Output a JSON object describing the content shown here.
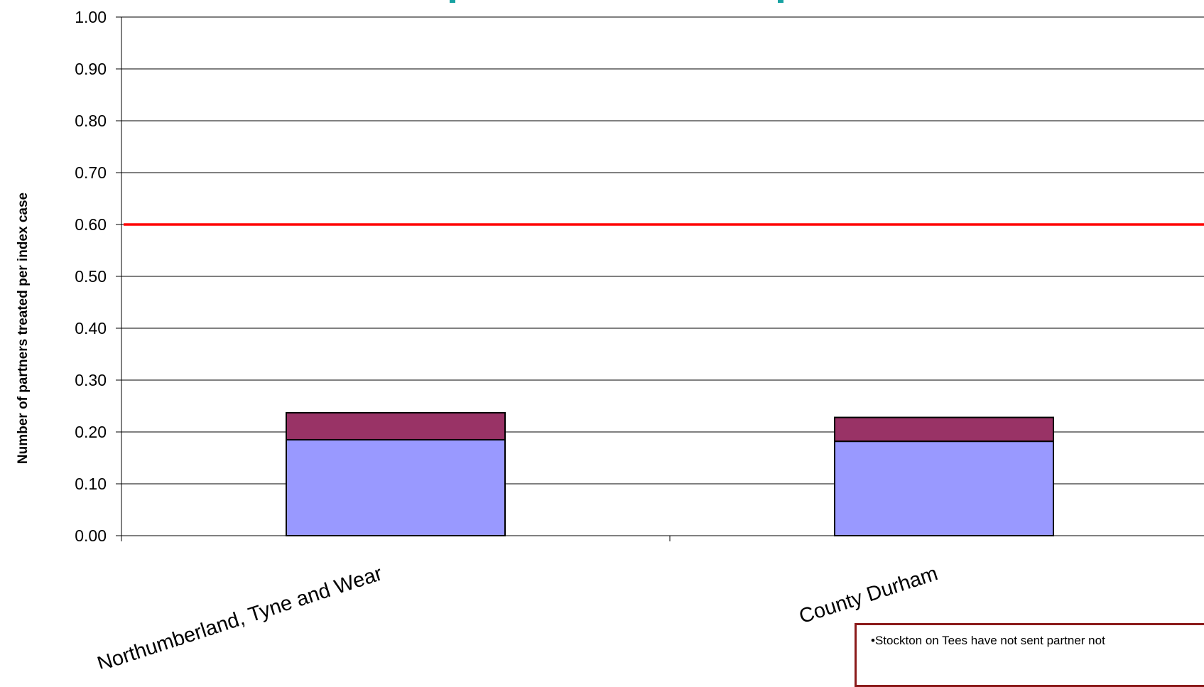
{
  "chart_data": {
    "type": "bar",
    "stacked": true,
    "ylabel": "Number of partners treated per index case",
    "ylim": [
      0,
      1.0
    ],
    "yticks": [
      "0.00",
      "0.10",
      "0.20",
      "0.30",
      "0.40",
      "0.50",
      "0.60",
      "0.70",
      "0.80",
      "0.90",
      "1.00"
    ],
    "grid": true,
    "categories": [
      "Northumberland, Tyne and Wear",
      "County Durham"
    ],
    "series": [
      {
        "values": [
          0.185,
          0.182
        ],
        "color": "#9999ff"
      },
      {
        "values": [
          0.052,
          0.046
        ],
        "color": "#993366"
      }
    ],
    "reference_line": {
      "value": 0.6,
      "color": "#ff0000"
    },
    "note": "•Stockton on Tees have not sent partner not",
    "title_color": "#17a2a2"
  }
}
